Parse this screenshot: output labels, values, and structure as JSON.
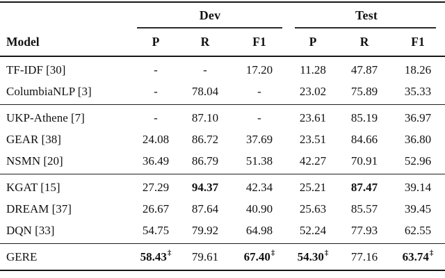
{
  "page": {
    "background_color": "#ffffff",
    "text_color": "#111111",
    "rule_color": "#161616"
  },
  "table": {
    "dagger_symbol": "‡",
    "model_header": "Model",
    "groups": [
      {
        "label": "Dev"
      },
      {
        "label": "Test"
      }
    ],
    "sub_headers": [
      "P",
      "R",
      "F1",
      "P",
      "R",
      "F1"
    ],
    "sections": [
      {
        "rows": [
          {
            "model": "TF-IDF [30]",
            "cells": [
              {
                "v": "-"
              },
              {
                "v": "-"
              },
              {
                "v": "17.20"
              },
              {
                "v": "11.28"
              },
              {
                "v": "47.87"
              },
              {
                "v": "18.26"
              }
            ]
          },
          {
            "model": "ColumbiaNLP [3]",
            "cells": [
              {
                "v": "-"
              },
              {
                "v": "78.04"
              },
              {
                "v": "-"
              },
              {
                "v": "23.02"
              },
              {
                "v": "75.89"
              },
              {
                "v": "35.33"
              }
            ]
          }
        ]
      },
      {
        "rows": [
          {
            "model": "UKP-Athene [7]",
            "cells": [
              {
                "v": "-"
              },
              {
                "v": "87.10"
              },
              {
                "v": "-"
              },
              {
                "v": "23.61"
              },
              {
                "v": "85.19"
              },
              {
                "v": "36.97"
              }
            ]
          },
          {
            "model": "GEAR [38]",
            "cells": [
              {
                "v": "24.08"
              },
              {
                "v": "86.72"
              },
              {
                "v": "37.69"
              },
              {
                "v": "23.51"
              },
              {
                "v": "84.66"
              },
              {
                "v": "36.80"
              }
            ]
          },
          {
            "model": "NSMN [20]",
            "cells": [
              {
                "v": "36.49"
              },
              {
                "v": "86.79"
              },
              {
                "v": "51.38"
              },
              {
                "v": "42.27"
              },
              {
                "v": "70.91"
              },
              {
                "v": "52.96"
              }
            ]
          }
        ]
      },
      {
        "rows": [
          {
            "model": "KGAT [15]",
            "cells": [
              {
                "v": "27.29"
              },
              {
                "v": "94.37",
                "b": true
              },
              {
                "v": "42.34"
              },
              {
                "v": "25.21"
              },
              {
                "v": "87.47",
                "b": true
              },
              {
                "v": "39.14"
              }
            ]
          },
          {
            "model": "DREAM [37]",
            "cells": [
              {
                "v": "26.67"
              },
              {
                "v": "87.64"
              },
              {
                "v": "40.90"
              },
              {
                "v": "25.63"
              },
              {
                "v": "85.57"
              },
              {
                "v": "39.45"
              }
            ]
          },
          {
            "model": "DQN [33]",
            "cells": [
              {
                "v": "54.75"
              },
              {
                "v": "79.92"
              },
              {
                "v": "64.98"
              },
              {
                "v": "52.24"
              },
              {
                "v": "77.93"
              },
              {
                "v": "62.55"
              }
            ]
          }
        ]
      },
      {
        "rows": [
          {
            "model": "GERE",
            "cells": [
              {
                "v": "58.43",
                "b": true,
                "d": true
              },
              {
                "v": "79.61"
              },
              {
                "v": "67.40",
                "b": true,
                "d": true
              },
              {
                "v": "54.30",
                "b": true,
                "d": true
              },
              {
                "v": "77.16"
              },
              {
                "v": "63.74",
                "b": true,
                "d": true
              }
            ]
          }
        ]
      }
    ]
  }
}
